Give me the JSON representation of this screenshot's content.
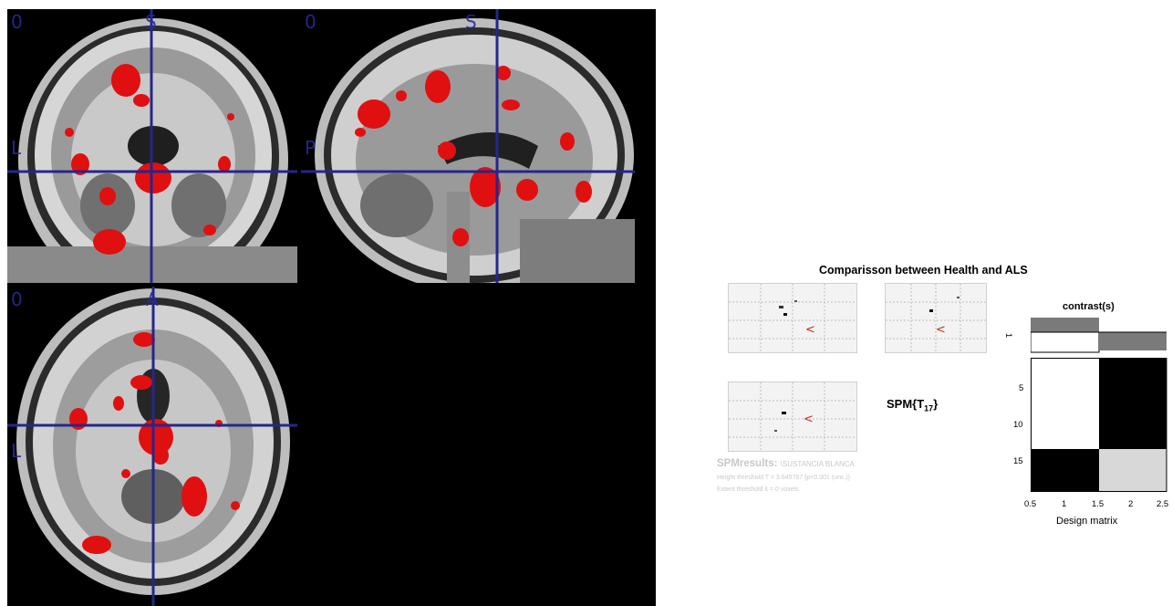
{
  "viewer": {
    "coronal": {
      "label_top_left": "0",
      "label_top": "S",
      "label_left": "L"
    },
    "sagittal": {
      "label_top_left": "0",
      "label_top": "S",
      "label_left": "P"
    },
    "axial": {
      "label_top_left": "0",
      "label_top": "A",
      "label_left": "L"
    },
    "crosshair_color": "#26268a",
    "activation_color": "#e01010"
  },
  "spm_results": {
    "title": "Comparisson between Health and ALS",
    "stat_label": "SPM{T",
    "stat_sub": "17",
    "stat_close": "}",
    "header": "SPMresults:",
    "dataset": "\\SUSTANCIA BLANCA",
    "height_threshold": "Height threshold T = 3.645767  {p<0.001 (unc.)}",
    "extent_threshold": "Extent threshold k = 0 voxels",
    "contrast_title": "contrast(s)",
    "contrast_index": "1",
    "design_matrix": {
      "xlabel": "Design matrix",
      "x_ticks": [
        "0.5",
        "1",
        "1.5",
        "2",
        "2.5"
      ],
      "y_ticks": [
        "5",
        "10",
        "15"
      ]
    }
  }
}
